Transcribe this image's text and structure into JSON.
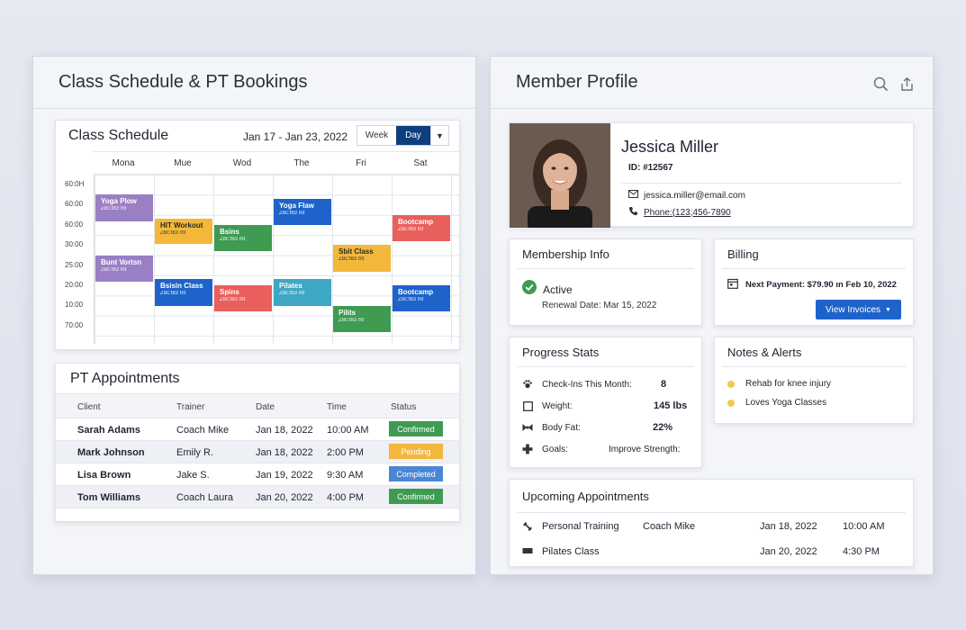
{
  "left": {
    "title": "Class Schedule & PT Bookings",
    "schedule": {
      "title": "Class Schedule",
      "date_range": "Jan 17 - Jan 23, 2022",
      "view_week": "Week",
      "view_day": "Day",
      "days": [
        "Mona",
        "Mue",
        "Wod",
        "The",
        "Fri",
        "Sat"
      ],
      "times": [
        "60:0H",
        "60:00",
        "60:00",
        "30:00",
        "25:00",
        "20:00",
        "10:00",
        "70:00"
      ],
      "events": [
        {
          "title": "Yoga Plow",
          "sub": "Z8c:f83 mt",
          "day": 0,
          "slot": 1,
          "span": 1.3,
          "color": "#9b7fc4"
        },
        {
          "title": "HIT Workout",
          "sub": "Z8c:f83 mt",
          "day": 1,
          "slot": 2.2,
          "span": 1.25,
          "color": "#f3b83b",
          "dark": true
        },
        {
          "title": "Bsins",
          "sub": "Z8c:f83 mt",
          "day": 2,
          "slot": 2.5,
          "span": 1.3,
          "color": "#3e9b51"
        },
        {
          "title": "Yoga Flaw",
          "sub": "Z8c:f83 mt",
          "day": 3,
          "slot": 1.2,
          "span": 1.3,
          "color": "#1d63c9"
        },
        {
          "title": "Bootcamp",
          "sub": "Z8c:f83 mt",
          "day": 5,
          "slot": 2,
          "span": 1.3,
          "color": "#e85f5c"
        },
        {
          "title": "Sbit Class",
          "sub": "Z8c:f83 mt",
          "day": 4,
          "slot": 3.5,
          "span": 1.3,
          "color": "#f3b83b",
          "dark": true
        },
        {
          "title": "Bunt Vortsn",
          "sub": "Z8c:f83 mt",
          "day": 0,
          "slot": 4,
          "span": 1.3,
          "color": "#9b7fc4"
        },
        {
          "title": "Bsisin Class",
          "sub": "Z8c:f83 mt",
          "day": 1,
          "slot": 5.2,
          "span": 1.3,
          "color": "#1d63c9"
        },
        {
          "title": "Spins",
          "sub": "Z8c:f83 mt",
          "day": 2,
          "slot": 5.5,
          "span": 1.3,
          "color": "#e85f5c"
        },
        {
          "title": "Pilates",
          "sub": "Z8c:f83 mt",
          "day": 3,
          "slot": 5.2,
          "span": 1.3,
          "color": "#3ea7c4"
        },
        {
          "title": "Bootcamp",
          "sub": "Z8c:f83 mt",
          "day": 5,
          "slot": 5.5,
          "span": 1.3,
          "color": "#1d63c9"
        },
        {
          "title": "Pilits",
          "sub": "Z8c:f83 mt",
          "day": 4,
          "slot": 6.5,
          "span": 1.3,
          "color": "#3e9b51"
        }
      ]
    },
    "pt": {
      "title": "PT Appointments",
      "headers": [
        "Client",
        "Trainer",
        "Date",
        "Time",
        "Status"
      ],
      "rows": [
        {
          "client": "Sarah Adams",
          "trainer": "Coach Mike",
          "date": "Jan 18, 2022",
          "time": "10:00 AM",
          "status": "Confirmed",
          "color": "#3e9b51"
        },
        {
          "client": "Mark Johnson",
          "trainer": "Emily R.",
          "date": "Jan 18, 2022",
          "time": "2:00 PM",
          "status": "Pending",
          "color": "#f3b83b"
        },
        {
          "client": "Lisa Brown",
          "trainer": "Jake S.",
          "date": "Jan 19, 2022",
          "time": "9:30 AM",
          "status": "Completed",
          "color": "#4a86d6"
        },
        {
          "client": "Tom Williams",
          "trainer": "Coach Laura",
          "date": "Jan 20, 2022",
          "time": "4:00 PM",
          "status": "Confirmed",
          "color": "#3e9b51"
        }
      ]
    }
  },
  "right": {
    "title": "Member Profile",
    "profile": {
      "name": "Jessica Miller",
      "id": "ID: #12567",
      "email": "jessica.miller@email.com",
      "phone": "Phone:(123;456-7890"
    },
    "membership": {
      "title": "Membership Info",
      "status": "Active",
      "renewal": "Renewal Date: Mar 15, 2022"
    },
    "billing": {
      "title": "Billing",
      "next_payment": "Next Payment: $79.90 ın Feb 10, 2022",
      "button": "View Invoices"
    },
    "progress": {
      "title": "Progress Stats",
      "items": [
        {
          "label": "Check-Ins This Month:",
          "value": "8",
          "icon": "paw-icon"
        },
        {
          "label": "Weight:",
          "value": "145 lbs",
          "icon": "square-icon"
        },
        {
          "label": "Body Fat:",
          "value": "22%",
          "icon": "bowtie-icon"
        },
        {
          "label": "Goals:",
          "value": "Improve Strength:",
          "icon": "cross-icon"
        }
      ]
    },
    "notes": {
      "title": "Notes & Alerts",
      "items": [
        "Rehab for knee injury",
        "Loves Yoga Classes"
      ],
      "dot_color": "#f2c94c"
    },
    "upcoming": {
      "title": "Upcoming Appointments",
      "rows": [
        {
          "type": "Personal Training",
          "trainer": "Coach Mike",
          "date": "Jan 18, 2022",
          "time": "10:00 AM",
          "icon": "dumbbell-icon"
        },
        {
          "type": "Pilates Class",
          "trainer": "",
          "date": "Jan 20, 2022",
          "time": "4:30 PM",
          "icon": "mat-icon"
        }
      ]
    }
  }
}
